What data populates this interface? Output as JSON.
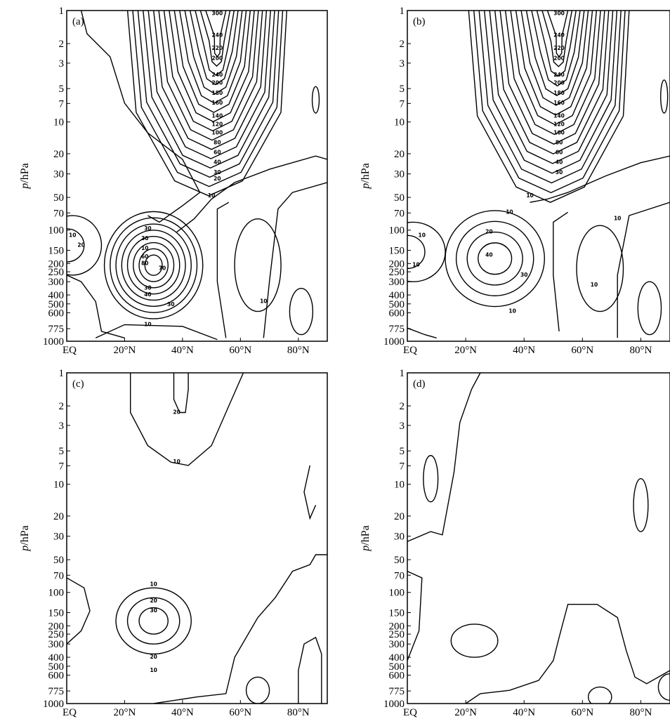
{
  "chart_data": [
    {
      "type": "contour",
      "panel_label": "(a)",
      "ylabel": "p/hPa",
      "y_scale": "log",
      "ylim": [
        1000,
        1
      ],
      "xlim": [
        0,
        90
      ],
      "x_ticks": [
        {
          "value": 0,
          "label": "EQ"
        },
        {
          "value": 20,
          "label": "20°N"
        },
        {
          "value": 40,
          "label": "40°N"
        },
        {
          "value": 60,
          "label": "60°N"
        },
        {
          "value": 80,
          "label": "80°N"
        }
      ],
      "y_ticks": [
        "1",
        "2",
        "3",
        "5",
        "7",
        "10",
        "20",
        "30",
        "50",
        "70",
        "100",
        "150",
        "200",
        "250",
        "300",
        "400",
        "500",
        "600",
        "775",
        "1000"
      ],
      "contour_labels": [
        "300",
        "240",
        "220",
        "200",
        "240",
        "200",
        "180",
        "160",
        "140",
        "120",
        "100",
        "80",
        "60",
        "40",
        "30",
        "20",
        "10",
        "30",
        "80",
        "10",
        "10",
        "20",
        "30",
        "60",
        "70",
        "30",
        "40",
        "30",
        "10",
        "10"
      ]
    },
    {
      "type": "contour",
      "panel_label": "(b)",
      "ylabel": "p/hPa",
      "y_scale": "log",
      "ylim": [
        1000,
        1
      ],
      "xlim": [
        0,
        90
      ],
      "x_ticks": [
        {
          "value": 0,
          "label": "EQ"
        },
        {
          "value": 20,
          "label": "20°N"
        },
        {
          "value": 40,
          "label": "40°N"
        },
        {
          "value": 60,
          "label": "60°N"
        },
        {
          "value": 80,
          "label": "80°N"
        }
      ],
      "y_ticks": [
        "1",
        "2",
        "3",
        "5",
        "7",
        "10",
        "20",
        "30",
        "50",
        "70",
        "100",
        "150",
        "200",
        "250",
        "300",
        "400",
        "500",
        "600",
        "775",
        "1000"
      ],
      "contour_labels": [
        "300",
        "240",
        "220",
        "200",
        "240",
        "200",
        "180",
        "160",
        "140",
        "120",
        "100",
        "80",
        "60",
        "40",
        "30",
        "10",
        "10",
        "10",
        "20",
        "40",
        "30",
        "10",
        "10",
        "10",
        "10"
      ]
    },
    {
      "type": "contour",
      "panel_label": "(c)",
      "ylabel": "p/hPa",
      "y_scale": "log",
      "ylim": [
        1000,
        1
      ],
      "xlim": [
        0,
        90
      ],
      "x_ticks": [
        {
          "value": 0,
          "label": "EQ"
        },
        {
          "value": 20,
          "label": "20°N"
        },
        {
          "value": 40,
          "label": "40°N"
        },
        {
          "value": 60,
          "label": "60°N"
        },
        {
          "value": 80,
          "label": "80°N"
        }
      ],
      "y_ticks": [
        "1",
        "2",
        "3",
        "5",
        "7",
        "10",
        "20",
        "30",
        "50",
        "70",
        "100",
        "150",
        "200",
        "250",
        "300",
        "400",
        "500",
        "600",
        "775",
        "1000"
      ],
      "contour_labels": [
        "20",
        "10",
        "10",
        "20",
        "30",
        "20",
        "10"
      ]
    },
    {
      "type": "contour",
      "panel_label": "(d)",
      "ylabel": "p/hPa",
      "y_scale": "log",
      "ylim": [
        1000,
        1
      ],
      "xlim": [
        0,
        90
      ],
      "x_ticks": [
        {
          "value": 0,
          "label": "EQ"
        },
        {
          "value": 20,
          "label": "20°N"
        },
        {
          "value": 40,
          "label": "40°N"
        },
        {
          "value": 60,
          "label": "60°N"
        },
        {
          "value": 80,
          "label": "80°N"
        }
      ],
      "y_ticks": [
        "1",
        "2",
        "3",
        "5",
        "7",
        "10",
        "20",
        "30",
        "50",
        "70",
        "100",
        "150",
        "200",
        "250",
        "300",
        "400",
        "500",
        "600",
        "775",
        "1000"
      ],
      "contour_labels": []
    }
  ]
}
